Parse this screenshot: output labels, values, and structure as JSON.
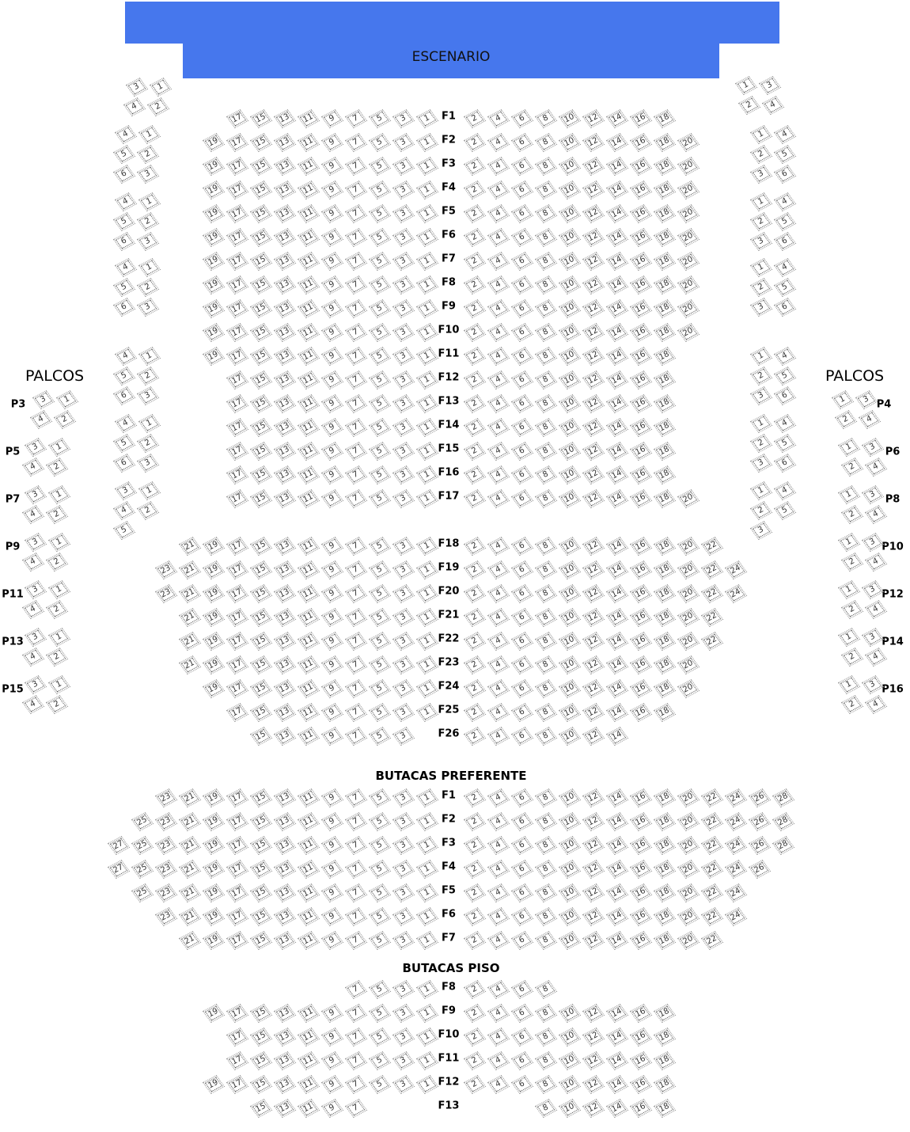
{
  "stage": {
    "label": "ESCENARIO",
    "color": "#4677ED"
  },
  "sections": [
    {
      "title": "",
      "rows": [
        {
          "label": "F1",
          "left_max": 17,
          "right_max": 18
        },
        {
          "label": "F2",
          "left_max": 19,
          "right_max": 20
        },
        {
          "label": "F3",
          "left_max": 19,
          "right_max": 20
        },
        {
          "label": "F4",
          "left_max": 19,
          "right_max": 20
        },
        {
          "label": "F5",
          "left_max": 19,
          "right_max": 20
        },
        {
          "label": "F6",
          "left_max": 19,
          "right_max": 20
        },
        {
          "label": "F7",
          "left_max": 19,
          "right_max": 20
        },
        {
          "label": "F8",
          "left_max": 19,
          "right_max": 20
        },
        {
          "label": "F9",
          "left_max": 19,
          "right_max": 20
        },
        {
          "label": "F10",
          "left_max": 19,
          "right_max": 20
        },
        {
          "label": "F11",
          "left_max": 19,
          "right_max": 18
        },
        {
          "label": "F12",
          "left_max": 17,
          "right_max": 18
        },
        {
          "label": "F13",
          "left_max": 17,
          "right_max": 18
        },
        {
          "label": "F14",
          "left_max": 17,
          "right_max": 18
        },
        {
          "label": "F15",
          "left_max": 17,
          "right_max": 18
        },
        {
          "label": "F16",
          "left_max": 17,
          "right_max": 18
        },
        {
          "label": "F17",
          "left_max": 17,
          "right_max": 20
        },
        {
          "label": "F18",
          "left_max": 21,
          "right_max": 22
        },
        {
          "label": "F19",
          "left_max": 23,
          "right_max": 24
        },
        {
          "label": "F20",
          "left_max": 23,
          "right_max": 24
        },
        {
          "label": "F21",
          "left_max": 21,
          "right_max": 22
        },
        {
          "label": "F22",
          "left_max": 21,
          "right_max": 22
        },
        {
          "label": "F23",
          "left_max": 21,
          "right_max": 20
        },
        {
          "label": "F24",
          "left_max": 19,
          "right_max": 20
        },
        {
          "label": "F25",
          "left_max": 17,
          "right_max": 18
        },
        {
          "label": "F26",
          "left_max": 15,
          "left_min": 3,
          "right_max": 14
        }
      ]
    },
    {
      "title": "BUTACAS PREFERENTE",
      "rows": [
        {
          "label": "F1",
          "left_max": 23,
          "right_max": 28
        },
        {
          "label": "F2",
          "left_max": 25,
          "right_max": 28
        },
        {
          "label": "F3",
          "left_max": 27,
          "right_max": 28
        },
        {
          "label": "F4",
          "left_max": 27,
          "right_max": 26
        },
        {
          "label": "F5",
          "left_max": 25,
          "right_max": 24
        },
        {
          "label": "F6",
          "left_max": 23,
          "right_max": 24
        },
        {
          "label": "F7",
          "left_max": 21,
          "right_max": 22
        }
      ]
    },
    {
      "title": "BUTACAS PISO",
      "rows": [
        {
          "label": "F8",
          "left_max": 7,
          "right_max": 8
        },
        {
          "label": "F9",
          "left_max": 19,
          "right_max": 18
        },
        {
          "label": "F10",
          "left_max": 17,
          "right_max": 18
        },
        {
          "label": "F11",
          "left_max": 17,
          "right_max": 18
        },
        {
          "label": "F12",
          "left_max": 19,
          "right_max": 18
        },
        {
          "label": "F13",
          "left_max": 15,
          "left_min": 7,
          "right_max": 18,
          "right_min": 8
        }
      ]
    }
  ],
  "stage_boxes": {
    "left": [
      [
        "3",
        "1"
      ],
      [
        "4",
        "2"
      ]
    ],
    "right": [
      [
        "1",
        "3"
      ],
      [
        "2",
        "4"
      ]
    ]
  },
  "side_blocks": {
    "left": [
      [
        [
          "4",
          "1"
        ],
        [
          "5",
          "2"
        ],
        [
          "6",
          "3"
        ]
      ],
      [
        [
          "4",
          "1"
        ],
        [
          "5",
          "2"
        ],
        [
          "6",
          "3"
        ]
      ],
      [
        [
          "4",
          "1"
        ],
        [
          "5",
          "2"
        ],
        [
          "6",
          "3"
        ]
      ],
      [
        [
          "4",
          "1"
        ],
        [
          "5",
          "2"
        ],
        [
          "6",
          "3"
        ]
      ],
      [
        [
          "4",
          "1"
        ],
        [
          "5",
          "2"
        ],
        [
          "6",
          "3"
        ]
      ],
      [
        [
          "3",
          "1"
        ],
        [
          "4",
          "2"
        ],
        [
          "5"
        ]
      ]
    ],
    "right": [
      [
        [
          "1",
          "4"
        ],
        [
          "2",
          "5"
        ],
        [
          "3",
          "6"
        ]
      ],
      [
        [
          "1",
          "4"
        ],
        [
          "2",
          "5"
        ],
        [
          "3",
          "6"
        ]
      ],
      [
        [
          "1",
          "4"
        ],
        [
          "2",
          "5"
        ],
        [
          "3",
          "6"
        ]
      ],
      [
        [
          "1",
          "4"
        ],
        [
          "2",
          "5"
        ],
        [
          "3",
          "6"
        ]
      ],
      [
        [
          "1",
          "4"
        ],
        [
          "2",
          "5"
        ],
        [
          "3",
          "6"
        ]
      ],
      [
        [
          "1",
          "4"
        ],
        [
          "2",
          "5"
        ],
        [
          "3"
        ]
      ]
    ]
  },
  "palcos": {
    "title_left": "PALCOS",
    "title_right": "PALCOS",
    "left": [
      {
        "label": "P3",
        "seats": [
          [
            "3",
            "1"
          ],
          [
            "4",
            "2"
          ]
        ]
      },
      {
        "label": "P5",
        "seats": [
          [
            "3",
            "1"
          ],
          [
            "4",
            "2"
          ]
        ]
      },
      {
        "label": "P7",
        "seats": [
          [
            "3",
            "1"
          ],
          [
            "4",
            "2"
          ]
        ]
      },
      {
        "label": "P9",
        "seats": [
          [
            "3",
            "1"
          ],
          [
            "4",
            "2"
          ]
        ]
      },
      {
        "label": "P11",
        "seats": [
          [
            "3",
            "1"
          ],
          [
            "4",
            "2"
          ]
        ]
      },
      {
        "label": "P13",
        "seats": [
          [
            "3",
            "1"
          ],
          [
            "4",
            "2"
          ]
        ]
      },
      {
        "label": "P15",
        "seats": [
          [
            "3",
            "1"
          ],
          [
            "4",
            "2"
          ]
        ]
      }
    ],
    "right": [
      {
        "label": "P4",
        "seats": [
          [
            "1",
            "3"
          ],
          [
            "2",
            "4"
          ]
        ]
      },
      {
        "label": "P6",
        "seats": [
          [
            "1",
            "3"
          ],
          [
            "2",
            "4"
          ]
        ]
      },
      {
        "label": "P8",
        "seats": [
          [
            "1",
            "3"
          ],
          [
            "2",
            "4"
          ]
        ]
      },
      {
        "label": "P10",
        "seats": [
          [
            "1",
            "3"
          ],
          [
            "2",
            "4"
          ]
        ]
      },
      {
        "label": "P12",
        "seats": [
          [
            "1",
            "3"
          ],
          [
            "2",
            "4"
          ]
        ]
      },
      {
        "label": "P14",
        "seats": [
          [
            "1",
            "3"
          ],
          [
            "2",
            "4"
          ]
        ]
      },
      {
        "label": "P16",
        "seats": [
          [
            "1",
            "3"
          ],
          [
            "2",
            "4"
          ]
        ]
      }
    ]
  }
}
